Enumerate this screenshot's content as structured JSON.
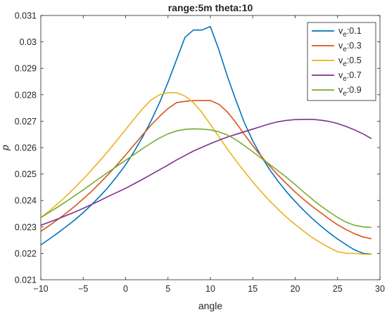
{
  "chart_data": {
    "type": "line",
    "title": "range:5m theta:10",
    "xlabel": "angle",
    "ylabel": "p",
    "xlim": [
      -10,
      30
    ],
    "ylim": [
      0.021,
      0.031
    ],
    "xticks": [
      -10,
      -5,
      0,
      5,
      10,
      15,
      20,
      25,
      30
    ],
    "xtick_labels": [
      "−10",
      "−5",
      "0",
      "5",
      "10",
      "15",
      "20",
      "25",
      "30"
    ],
    "yticks": [
      0.021,
      0.022,
      0.023,
      0.024,
      0.025,
      0.026,
      0.027,
      0.028,
      0.029,
      0.03,
      0.031
    ],
    "ytick_labels": [
      "0.021",
      "0.022",
      "0.023",
      "0.024",
      "0.025",
      "0.026",
      "0.027",
      "0.028",
      "0.029",
      "0.03",
      "0.031"
    ],
    "grid": false,
    "box": true,
    "legend_position": "top-right",
    "x": [
      -10,
      -9,
      -8,
      -7,
      -6,
      -5,
      -4,
      -3,
      -2,
      -1,
      0,
      1,
      2,
      3,
      4,
      5,
      6,
      7,
      8,
      9,
      10,
      11,
      12,
      13,
      14,
      15,
      16,
      17,
      18,
      19,
      20,
      21,
      22,
      23,
      24,
      25,
      26,
      27,
      28,
      29
    ],
    "series": [
      {
        "name": "v_e:0.1",
        "legend_base": "v",
        "legend_sub": "e",
        "legend_rest": ":0.1",
        "color": "#0072BD",
        "values": [
          0.02232,
          0.02254,
          0.02277,
          0.02301,
          0.02326,
          0.02354,
          0.02384,
          0.02417,
          0.02452,
          0.02492,
          0.02535,
          0.02585,
          0.0264,
          0.02701,
          0.0277,
          0.02847,
          0.02932,
          0.03017,
          0.03045,
          0.03045,
          0.03058,
          0.0297,
          0.0287,
          0.0278,
          0.02695,
          0.02625,
          0.02567,
          0.02516,
          0.02472,
          0.02432,
          0.02396,
          0.02363,
          0.02332,
          0.02304,
          0.02278,
          0.02254,
          0.02233,
          0.02213,
          0.022,
          0.02197
        ]
      },
      {
        "name": "v_e:0.3",
        "legend_base": "v",
        "legend_sub": "e",
        "legend_rest": ":0.3",
        "color": "#D95319",
        "values": [
          0.02283,
          0.02305,
          0.02328,
          0.02352,
          0.02378,
          0.02406,
          0.02435,
          0.02467,
          0.025,
          0.02535,
          0.02572,
          0.0261,
          0.02648,
          0.02685,
          0.02718,
          0.02748,
          0.0277,
          0.02775,
          0.02778,
          0.02778,
          0.02778,
          0.02764,
          0.02735,
          0.02695,
          0.0265,
          0.02607,
          0.02567,
          0.0253,
          0.02495,
          0.02463,
          0.02432,
          0.02404,
          0.02378,
          0.02354,
          0.0233,
          0.02308,
          0.0229,
          0.02274,
          0.02262,
          0.02255
        ]
      },
      {
        "name": "v_e:0.5",
        "legend_base": "v",
        "legend_sub": "e",
        "legend_rest": ":0.5",
        "color": "#EDB120",
        "values": [
          0.02335,
          0.0236,
          0.02388,
          0.02417,
          0.02448,
          0.02481,
          0.02516,
          0.02552,
          0.02589,
          0.02628,
          0.02668,
          0.02708,
          0.02747,
          0.0278,
          0.028,
          0.02808,
          0.02808,
          0.02795,
          0.0277,
          0.02733,
          0.02688,
          0.02641,
          0.02595,
          0.02551,
          0.0251,
          0.0247,
          0.02433,
          0.02398,
          0.02366,
          0.02336,
          0.02309,
          0.02284,
          0.0226,
          0.0224,
          0.02222,
          0.02206,
          0.022,
          0.022,
          0.02197,
          0.02196
        ]
      },
      {
        "name": "v_e:0.7",
        "legend_base": "v",
        "legend_sub": "e",
        "legend_rest": ":0.7",
        "color": "#7E2F8E",
        "values": [
          0.02306,
          0.02318,
          0.0233,
          0.02343,
          0.02356,
          0.0237,
          0.02385,
          0.024,
          0.02416,
          0.02431,
          0.02446,
          0.02463,
          0.0248,
          0.02498,
          0.02516,
          0.02534,
          0.02553,
          0.0257,
          0.02587,
          0.02601,
          0.02615,
          0.02628,
          0.0264,
          0.0265,
          0.0266,
          0.0267,
          0.0268,
          0.0269,
          0.02698,
          0.02703,
          0.02706,
          0.02707,
          0.02707,
          0.02704,
          0.02699,
          0.02691,
          0.0268,
          0.02667,
          0.02652,
          0.02634
        ]
      },
      {
        "name": "v_e:0.9",
        "legend_base": "v",
        "legend_sub": "e",
        "legend_rest": ":0.9",
        "color": "#77AC30",
        "values": [
          0.02335,
          0.02355,
          0.02375,
          0.02396,
          0.02418,
          0.0244,
          0.02463,
          0.02486,
          0.02508,
          0.0253,
          0.02552,
          0.02574,
          0.02596,
          0.02617,
          0.02636,
          0.02652,
          0.02663,
          0.02669,
          0.02671,
          0.0267,
          0.02667,
          0.0266,
          0.02648,
          0.0263,
          0.02608,
          0.02584,
          0.0256,
          0.02536,
          0.02512,
          0.02487,
          0.0246,
          0.02432,
          0.02405,
          0.0238,
          0.02357,
          0.02336,
          0.02318,
          0.02306,
          0.023,
          0.02298
        ]
      }
    ]
  }
}
